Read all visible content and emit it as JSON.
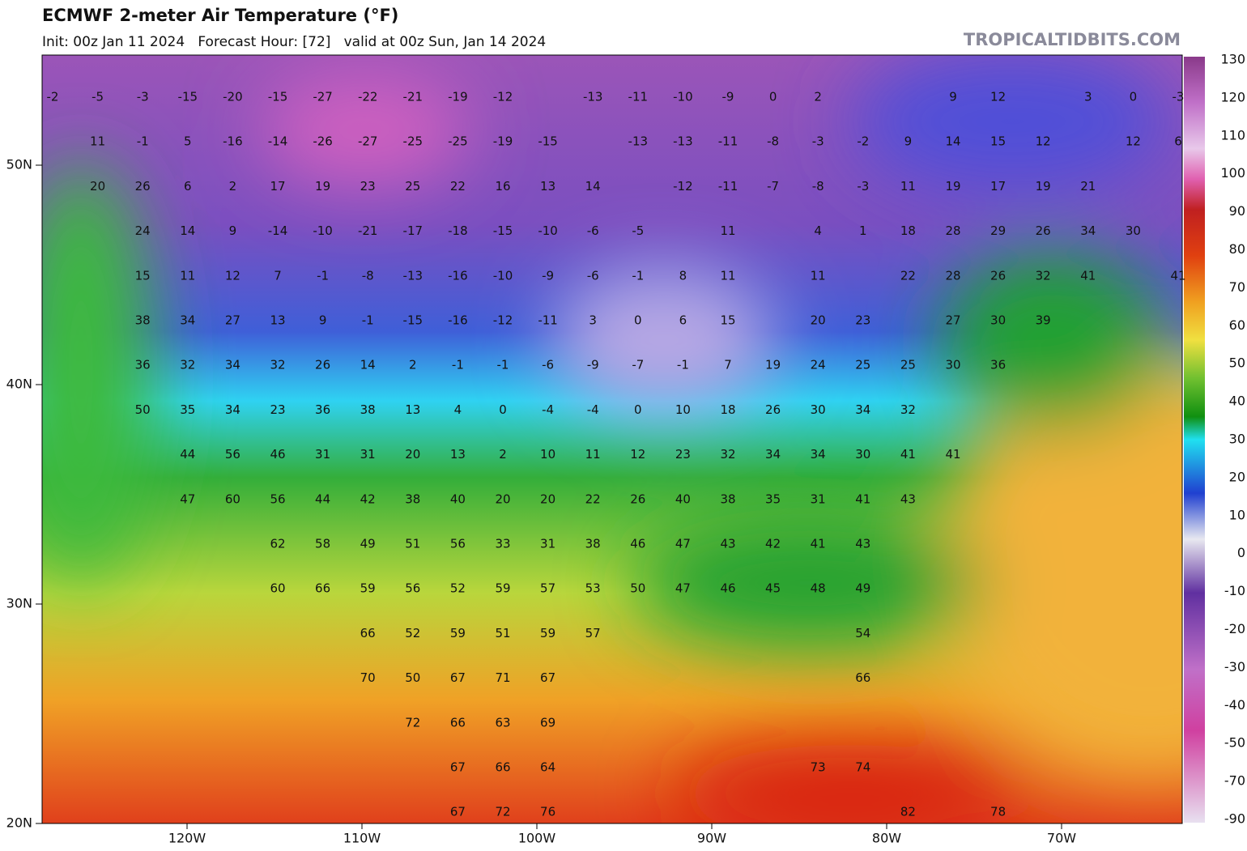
{
  "header": {
    "title": "ECMWF 2-meter Air Temperature (°F)",
    "subtitle": "Init: 00z Jan 11 2024   Forecast Hour: [72]   valid at 00z Sun, Jan 14 2024",
    "brand": "TROPICALTIDBITS.COM"
  },
  "map": {
    "lat_labels": [
      "50N",
      "40N",
      "30N",
      "20N"
    ],
    "lon_labels": [
      "120W",
      "110W",
      "100W",
      "90W",
      "80W",
      "70W"
    ],
    "values": [
      [
        -2,
        -5,
        -3,
        -15,
        -20,
        -15,
        -27,
        -22,
        -21,
        -19,
        -12,
        null,
        -13,
        -11,
        -10,
        -9,
        0,
        2,
        null,
        null,
        9,
        12,
        null,
        3,
        0,
        -3
      ],
      [
        null,
        11,
        -1,
        5,
        -16,
        -14,
        -26,
        -27,
        -25,
        -25,
        -19,
        -15,
        null,
        -13,
        -13,
        -11,
        -8,
        -3,
        -2,
        9,
        14,
        15,
        12,
        null,
        12,
        6
      ],
      [
        null,
        20,
        26,
        6,
        2,
        17,
        19,
        23,
        25,
        22,
        16,
        13,
        14,
        null,
        -12,
        -11,
        -7,
        -8,
        -3,
        11,
        19,
        17,
        19,
        21,
        null,
        null
      ],
      [
        null,
        null,
        24,
        14,
        9,
        -14,
        -10,
        -21,
        -17,
        -18,
        -15,
        -10,
        -6,
        -5,
        null,
        11,
        null,
        4,
        1,
        18,
        28,
        29,
        26,
        34,
        30,
        null
      ],
      [
        null,
        null,
        15,
        11,
        12,
        7,
        -1,
        -8,
        -13,
        -16,
        -10,
        -9,
        -6,
        -1,
        8,
        11,
        null,
        11,
        null,
        22,
        28,
        26,
        32,
        41,
        null,
        41
      ],
      [
        null,
        null,
        38,
        34,
        27,
        13,
        9,
        -1,
        -15,
        -16,
        -12,
        -11,
        3,
        0,
        6,
        15,
        null,
        20,
        23,
        null,
        27,
        30,
        39,
        null,
        null,
        null
      ],
      [
        null,
        null,
        36,
        32,
        34,
        32,
        26,
        14,
        2,
        -1,
        -1,
        -6,
        -9,
        -7,
        -1,
        7,
        19,
        24,
        25,
        25,
        30,
        36,
        null,
        null,
        null,
        null
      ],
      [
        null,
        null,
        50,
        35,
        34,
        23,
        36,
        38,
        13,
        4,
        0,
        -4,
        -4,
        0,
        10,
        18,
        26,
        30,
        34,
        32,
        null,
        null,
        null,
        null,
        null,
        null
      ],
      [
        null,
        null,
        null,
        44,
        56,
        46,
        31,
        31,
        20,
        13,
        2,
        10,
        11,
        12,
        23,
        32,
        34,
        34,
        30,
        41,
        41,
        null,
        null,
        null,
        null,
        null
      ],
      [
        null,
        null,
        null,
        47,
        60,
        56,
        44,
        42,
        38,
        40,
        20,
        20,
        22,
        26,
        40,
        38,
        35,
        31,
        41,
        43,
        null,
        null,
        null,
        null,
        null,
        null
      ],
      [
        null,
        null,
        null,
        null,
        null,
        62,
        58,
        49,
        51,
        56,
        33,
        31,
        38,
        46,
        47,
        43,
        42,
        41,
        43,
        null,
        null,
        null,
        null,
        null,
        null,
        null
      ],
      [
        null,
        null,
        null,
        null,
        null,
        60,
        66,
        59,
        56,
        52,
        59,
        57,
        53,
        50,
        47,
        46,
        45,
        48,
        49,
        null,
        null,
        null,
        null,
        null,
        null,
        null
      ],
      [
        null,
        null,
        null,
        null,
        null,
        null,
        null,
        66,
        52,
        59,
        51,
        59,
        57,
        null,
        null,
        null,
        null,
        null,
        54,
        null,
        null,
        null,
        null,
        null,
        null,
        null
      ],
      [
        null,
        null,
        null,
        null,
        null,
        null,
        null,
        70,
        50,
        67,
        71,
        67,
        null,
        null,
        null,
        null,
        null,
        null,
        66,
        null,
        null,
        null,
        null,
        null,
        null,
        null
      ],
      [
        null,
        null,
        null,
        null,
        null,
        null,
        null,
        null,
        72,
        66,
        63,
        69,
        null,
        null,
        null,
        null,
        null,
        null,
        null,
        null,
        null,
        null,
        null,
        null,
        null,
        null
      ],
      [
        null,
        null,
        null,
        null,
        null,
        null,
        null,
        null,
        null,
        67,
        66,
        64,
        null,
        null,
        null,
        null,
        null,
        73,
        74,
        null,
        null,
        null,
        null,
        null,
        null,
        null
      ],
      [
        null,
        null,
        null,
        null,
        null,
        null,
        null,
        null,
        null,
        67,
        72,
        76,
        null,
        null,
        null,
        null,
        null,
        null,
        null,
        82,
        null,
        78,
        null,
        null,
        null,
        null
      ]
    ]
  },
  "colorbar": {
    "ticks": [
      130,
      120,
      110,
      100,
      90,
      80,
      70,
      60,
      50,
      40,
      30,
      20,
      10,
      0,
      -10,
      -20,
      -30,
      -40,
      -50,
      -70,
      -90
    ]
  }
}
